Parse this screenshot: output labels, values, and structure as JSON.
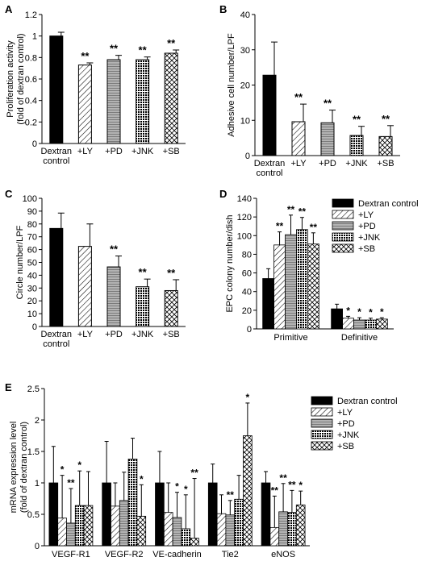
{
  "colors": {
    "black": "#000000",
    "gray": "#b3b3b3",
    "white": "#ffffff"
  },
  "legend_entries": [
    "Dextran control",
    "+LY",
    "+PD",
    "+JNK",
    "+SB"
  ],
  "patterns": [
    "solid-black",
    "diagonal-hatch",
    "horizontal-lines",
    "dotted-grid",
    "cross-hatch"
  ],
  "sig_mark": "**",
  "sig_mark_single": "*",
  "chart_data": [
    {
      "panel": "A",
      "type": "bar",
      "ylabel": [
        "Proliferation activity",
        "(fold of dextran control)"
      ],
      "ylim": [
        0,
        1.2
      ],
      "yticks": [
        "0",
        "0.2",
        "0.4",
        "0.6",
        "0.8",
        "1",
        "1.2"
      ],
      "ytick_values": [
        0,
        0.2,
        0.4,
        0.6,
        0.8,
        1,
        1.2
      ],
      "categories": [
        "Dextran control",
        "+LY",
        "+PD",
        "+JNK",
        "+SB"
      ],
      "category_labels": [
        [
          "Dextran",
          "control"
        ],
        [
          "+LY"
        ],
        [
          "+PD"
        ],
        [
          "+JNK"
        ],
        [
          "+SB"
        ]
      ],
      "values": [
        1.0,
        0.73,
        0.78,
        0.78,
        0.84
      ],
      "errors": [
        0.035,
        0.02,
        0.04,
        0.025,
        0.03
      ],
      "significance": [
        "",
        "**",
        "**",
        "**",
        "**"
      ]
    },
    {
      "panel": "B",
      "type": "bar",
      "ylabel": [
        "Adhesive cell number/LPF"
      ],
      "ylim": [
        0,
        40
      ],
      "yticks": [
        "0",
        "10",
        "20",
        "30",
        "40"
      ],
      "ytick_values": [
        0,
        10,
        20,
        30,
        40
      ],
      "categories": [
        "Dextran control",
        "+LY",
        "+PD",
        "+JNK",
        "+SB"
      ],
      "category_labels": [
        [
          "Dextran",
          "control"
        ],
        [
          "+LY"
        ],
        [
          "+PD"
        ],
        [
          "+JNK"
        ],
        [
          "+SB"
        ]
      ],
      "values": [
        22.8,
        9.6,
        9.3,
        5.7,
        5.4
      ],
      "errors": [
        9.4,
        5.0,
        3.6,
        2.6,
        3.1
      ],
      "significance": [
        "",
        "**",
        "**",
        "**",
        "**"
      ]
    },
    {
      "panel": "C",
      "type": "bar",
      "ylabel": [
        "Circle number/LPF"
      ],
      "ylim": [
        0,
        100
      ],
      "yticks": [
        "0",
        "10",
        "20",
        "30",
        "40",
        "50",
        "60",
        "70",
        "80",
        "90",
        "100"
      ],
      "ytick_values": [
        0,
        10,
        20,
        30,
        40,
        50,
        60,
        70,
        80,
        90,
        100
      ],
      "categories": [
        "Dextran control",
        "+LY",
        "+PD",
        "+JNK",
        "+SB"
      ],
      "category_labels": [
        [
          "Dextran",
          "control"
        ],
        [
          "+LY"
        ],
        [
          "+PD"
        ],
        [
          "+JNK"
        ],
        [
          "+SB"
        ]
      ],
      "values": [
        76.5,
        62.5,
        46.5,
        31.0,
        28.0
      ],
      "errors": [
        12.0,
        17.5,
        8.5,
        6.0,
        8.5
      ],
      "significance": [
        "",
        "",
        "**",
        "**",
        "**"
      ]
    },
    {
      "panel": "D",
      "type": "bar",
      "ylabel": [
        "EPC colony number/dish"
      ],
      "ylim": [
        0,
        140
      ],
      "yticks": [
        "0",
        "20",
        "40",
        "60",
        "80",
        "100",
        "120",
        "140"
      ],
      "ytick_values": [
        0,
        20,
        40,
        60,
        80,
        100,
        120,
        140
      ],
      "categories": [
        "Primitive",
        "Definitive"
      ],
      "series": [
        {
          "name": "Dextran control",
          "values": [
            54.0,
            21.5
          ],
          "errors": [
            10.5,
            5.0
          ],
          "significance": [
            "",
            ""
          ]
        },
        {
          "name": "+LY",
          "values": [
            90.0,
            11.5
          ],
          "errors": [
            14.0,
            2.0
          ],
          "significance": [
            "**",
            "*"
          ]
        },
        {
          "name": "+PD",
          "values": [
            101.0,
            9.5
          ],
          "errors": [
            21.0,
            2.5
          ],
          "significance": [
            "**",
            "*"
          ]
        },
        {
          "name": "+JNK",
          "values": [
            106.5,
            9.5
          ],
          "errors": [
            13.0,
            2.0
          ],
          "significance": [
            "**",
            "*"
          ]
        },
        {
          "name": "+SB",
          "values": [
            91.0,
            10.5
          ],
          "errors": [
            12.0,
            1.5
          ],
          "significance": [
            "**",
            "*"
          ]
        }
      ]
    },
    {
      "panel": "E",
      "type": "bar",
      "ylabel": [
        "mRNA expression level",
        "(fold of dextran control)"
      ],
      "ylim": [
        0,
        2.5
      ],
      "yticks": [
        "0",
        "0.5",
        "1",
        "1.5",
        "2",
        "2.5"
      ],
      "ytick_values": [
        0,
        0.5,
        1,
        1.5,
        2,
        2.5
      ],
      "categories": [
        "VEGF-R1",
        "VEGF-R2",
        "VE-cadherin",
        "Tie2",
        "eNOS"
      ],
      "series": [
        {
          "name": "Dextran control",
          "values": [
            1.0,
            1.0,
            1.0,
            1.0,
            1.0
          ],
          "errors": [
            0.58,
            0.66,
            0.5,
            0.3,
            0.18
          ],
          "significance": [
            "",
            "",
            "",
            "",
            ""
          ]
        },
        {
          "name": "+LY",
          "values": [
            0.44,
            0.63,
            0.53,
            0.51,
            0.29
          ],
          "errors": [
            0.68,
            0.37,
            0.47,
            0.3,
            0.5
          ],
          "significance": [
            "*",
            "",
            "",
            "",
            "**"
          ]
        },
        {
          "name": "+PD",
          "values": [
            0.36,
            0.72,
            0.45,
            0.49,
            0.54
          ],
          "errors": [
            0.55,
            0.45,
            0.4,
            0.23,
            0.45
          ],
          "significance": [
            "**",
            "",
            "*",
            "**",
            "**"
          ]
        },
        {
          "name": "+JNK",
          "values": [
            0.64,
            1.38,
            0.27,
            0.74,
            0.53
          ],
          "errors": [
            0.55,
            0.33,
            0.54,
            0.38,
            0.35
          ],
          "significance": [
            "*",
            "",
            "*",
            "",
            "**"
          ]
        },
        {
          "name": "+SB",
          "values": [
            0.64,
            0.47,
            0.12,
            1.75,
            0.65
          ],
          "errors": [
            0.54,
            0.5,
            0.95,
            0.52,
            0.22
          ],
          "significance": [
            "",
            "*",
            "**",
            "*",
            "*"
          ]
        }
      ]
    }
  ]
}
